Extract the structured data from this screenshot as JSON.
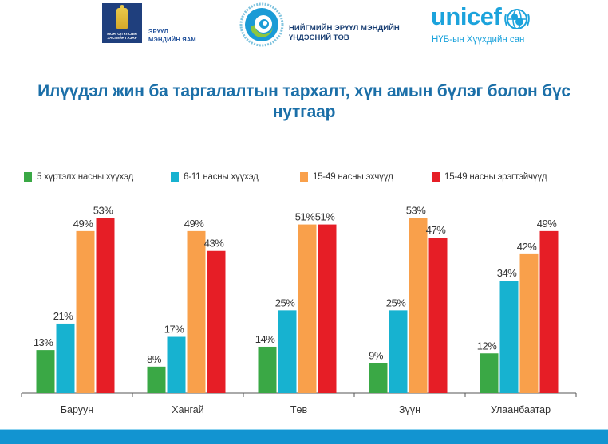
{
  "header": {
    "moh": {
      "emblem_text": "МОНГОЛ УЛСЫН ЗАСГИЙН ГАЗАР",
      "name_line1": "ЭРҮҮЛ",
      "name_line2": "МЭНДИЙН ЯАМ",
      "color": "#1f3f7d"
    },
    "nph": {
      "name_line1": "НИЙГМИЙН ЭРҮҮЛ МЭНДИЙН",
      "name_line2": "ҮНДЭСНИЙ ТӨВ"
    },
    "unicef": {
      "wordmark": "unicef",
      "subtitle": "НҮБ-ын Хүүхдийн сан",
      "color": "#1ca3dc"
    }
  },
  "chart_data": {
    "type": "bar",
    "title": "Илүүдэл жин ба таргалалтын тархалт, хүн амын бүлэг болон бүс нутгаар",
    "xlabel": "",
    "ylabel": "",
    "ylim": [
      0,
      55
    ],
    "grid": false,
    "legend_position": "top",
    "value_suffix": "%",
    "categories": [
      "Баруун",
      "Хангай",
      "Төв",
      "Зүүн",
      "Улаанбаатар"
    ],
    "series": [
      {
        "name": "5 хүртэлх насны хүүхэд",
        "color": "#3aa845",
        "values": [
          13,
          8,
          14,
          9,
          12
        ]
      },
      {
        "name": "6-11 насны хүүхэд",
        "color": "#17b2d0",
        "values": [
          21,
          17,
          25,
          25,
          34
        ]
      },
      {
        "name": "15-49 насны эхчүүд",
        "color": "#f9a04b",
        "values": [
          49,
          49,
          51,
          53,
          42
        ]
      },
      {
        "name": "15-49 насны эрэгтэйчүүд",
        "color": "#e61e26",
        "values": [
          53,
          43,
          51,
          47,
          49
        ]
      }
    ]
  },
  "footer": {
    "color": "#1294d1"
  }
}
